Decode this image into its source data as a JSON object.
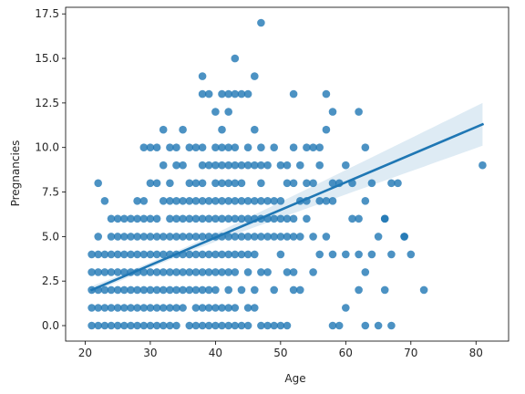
{
  "chart_data": {
    "type": "scatter",
    "title": "",
    "xlabel": "Age",
    "ylabel": "Pregnancies",
    "xlim": [
      17,
      85
    ],
    "ylim": [
      -0.87,
      17.87
    ],
    "xticks": [
      20,
      30,
      40,
      50,
      60,
      70,
      80
    ],
    "xtick_labels": [
      "20",
      "30",
      "40",
      "50",
      "60",
      "70",
      "80"
    ],
    "yticks": [
      0.0,
      2.5,
      5.0,
      7.5,
      10.0,
      12.5,
      15.0,
      17.5
    ],
    "ytick_labels": [
      "0.0",
      "2.5",
      "5.0",
      "7.5",
      "10.0",
      "12.5",
      "15.0",
      "17.5"
    ],
    "grid": false,
    "legend": "none",
    "colors": {
      "points": "#1f77b4",
      "line": "#1f77b4",
      "band": "#1f77b4"
    },
    "points": {
      "x": [
        21,
        21,
        21,
        21,
        21,
        22,
        22,
        22,
        22,
        22,
        22,
        22,
        23,
        23,
        23,
        23,
        23,
        23,
        24,
        24,
        24,
        24,
        24,
        24,
        24,
        25,
        25,
        25,
        25,
        25,
        25,
        25,
        26,
        26,
        26,
        26,
        26,
        26,
        26,
        27,
        27,
        27,
        27,
        27,
        27,
        27,
        28,
        28,
        28,
        28,
        28,
        28,
        28,
        28,
        29,
        29,
        29,
        29,
        29,
        29,
        29,
        29,
        29,
        30,
        30,
        30,
        30,
        30,
        30,
        30,
        30,
        30,
        31,
        31,
        31,
        31,
        31,
        31,
        31,
        31,
        31,
        32,
        32,
        32,
        32,
        32,
        32,
        32,
        32,
        32,
        33,
        33,
        33,
        33,
        33,
        33,
        33,
        33,
        33,
        33,
        34,
        34,
        34,
        34,
        34,
        34,
        34,
        34,
        34,
        34,
        35,
        35,
        35,
        35,
        35,
        35,
        35,
        35,
        35,
        36,
        36,
        36,
        36,
        36,
        36,
        36,
        36,
        36,
        37,
        37,
        37,
        37,
        37,
        37,
        37,
        37,
        37,
        37,
        38,
        38,
        38,
        38,
        38,
        38,
        38,
        38,
        38,
        38,
        38,
        38,
        38,
        39,
        39,
        39,
        39,
        39,
        39,
        39,
        39,
        39,
        39,
        40,
        40,
        40,
        40,
        40,
        40,
        40,
        40,
        40,
        40,
        40,
        40,
        41,
        41,
        41,
        41,
        41,
        41,
        41,
        41,
        41,
        41,
        41,
        41,
        42,
        42,
        42,
        42,
        42,
        42,
        42,
        42,
        42,
        42,
        42,
        42,
        42,
        43,
        43,
        43,
        43,
        43,
        43,
        43,
        43,
        43,
        43,
        43,
        43,
        44,
        44,
        44,
        44,
        44,
        44,
        44,
        44,
        44,
        45,
        45,
        45,
        45,
        45,
        45,
        45,
        45,
        45,
        45,
        46,
        46,
        46,
        46,
        46,
        46,
        46,
        46,
        46,
        47,
        47,
        47,
        47,
        47,
        47,
        47,
        47,
        47,
        48,
        48,
        48,
        48,
        48,
        48,
        49,
        49,
        49,
        49,
        49,
        49,
        50,
        50,
        50,
        50,
        50,
        50,
        51,
        51,
        51,
        51,
        51,
        51,
        52,
        52,
        52,
        52,
        52,
        52,
        52,
        53,
        53,
        53,
        53,
        54,
        54,
        54,
        54,
        55,
        55,
        55,
        55,
        56,
        56,
        56,
        56,
        57,
        57,
        57,
        57,
        58,
        58,
        58,
        58,
        58,
        59,
        59,
        60,
        60,
        60,
        61,
        61,
        62,
        62,
        62,
        62,
        63,
        63,
        63,
        63,
        64,
        64,
        65,
        65,
        66,
        66,
        66,
        67,
        67,
        67,
        68,
        69,
        69,
        70,
        72,
        81
      ],
      "y": [
        0,
        1,
        2,
        3,
        4,
        0,
        1,
        2,
        3,
        4,
        5,
        8,
        0,
        1,
        2,
        3,
        4,
        7,
        0,
        1,
        2,
        3,
        4,
        5,
        6,
        0,
        1,
        2,
        3,
        4,
        5,
        6,
        0,
        1,
        2,
        3,
        4,
        5,
        6,
        0,
        1,
        2,
        3,
        4,
        5,
        6,
        0,
        1,
        2,
        3,
        4,
        5,
        6,
        7,
        0,
        1,
        2,
        3,
        4,
        5,
        6,
        7,
        10,
        0,
        1,
        2,
        3,
        4,
        5,
        6,
        8,
        10,
        0,
        1,
        2,
        3,
        4,
        5,
        6,
        8,
        10,
        0,
        1,
        2,
        3,
        4,
        5,
        7,
        9,
        11,
        0,
        1,
        2,
        3,
        4,
        5,
        6,
        7,
        8,
        10,
        0,
        1,
        2,
        3,
        4,
        5,
        6,
        7,
        9,
        10,
        1,
        2,
        3,
        4,
        5,
        6,
        7,
        9,
        11,
        0,
        2,
        3,
        4,
        5,
        6,
        7,
        8,
        10,
        0,
        1,
        2,
        3,
        4,
        5,
        6,
        7,
        8,
        10,
        0,
        1,
        2,
        3,
        4,
        5,
        6,
        7,
        8,
        9,
        10,
        13,
        14,
        0,
        1,
        2,
        3,
        4,
        5,
        6,
        7,
        9,
        13,
        0,
        1,
        2,
        3,
        4,
        5,
        6,
        7,
        8,
        9,
        10,
        12,
        0,
        1,
        3,
        4,
        5,
        6,
        7,
        8,
        9,
        10,
        11,
        13,
        0,
        1,
        2,
        3,
        4,
        5,
        6,
        7,
        8,
        9,
        10,
        12,
        13,
        0,
        1,
        3,
        4,
        5,
        6,
        7,
        8,
        9,
        10,
        13,
        15,
        0,
        2,
        4,
        5,
        6,
        7,
        8,
        9,
        13,
        0,
        1,
        3,
        4,
        5,
        6,
        7,
        9,
        10,
        13,
        1,
        2,
        4,
        5,
        6,
        7,
        9,
        11,
        14,
        0,
        3,
        5,
        6,
        7,
        8,
        9,
        10,
        17,
        0,
        3,
        5,
        6,
        7,
        9,
        0,
        2,
        5,
        6,
        7,
        10,
        0,
        4,
        5,
        6,
        7,
        9,
        0,
        3,
        5,
        6,
        8,
        9,
        2,
        3,
        5,
        6,
        8,
        10,
        13,
        2,
        5,
        7,
        9,
        6,
        7,
        8,
        10,
        3,
        5,
        8,
        10,
        4,
        7,
        9,
        10,
        5,
        7,
        11,
        13,
        0,
        4,
        7,
        8,
        12,
        0,
        8,
        1,
        4,
        9,
        6,
        8,
        2,
        4,
        6,
        12,
        0,
        3,
        7,
        10,
        4,
        8,
        0,
        5,
        2,
        6,
        6,
        0,
        4,
        8,
        8,
        5,
        5,
        4,
        2,
        9
      ]
    },
    "regression": {
      "x": [
        21,
        81
      ],
      "y": [
        2.0,
        11.3
      ],
      "ci_lower": [
        1.78,
        10.1
      ],
      "ci_upper": [
        2.22,
        12.5
      ]
    }
  }
}
